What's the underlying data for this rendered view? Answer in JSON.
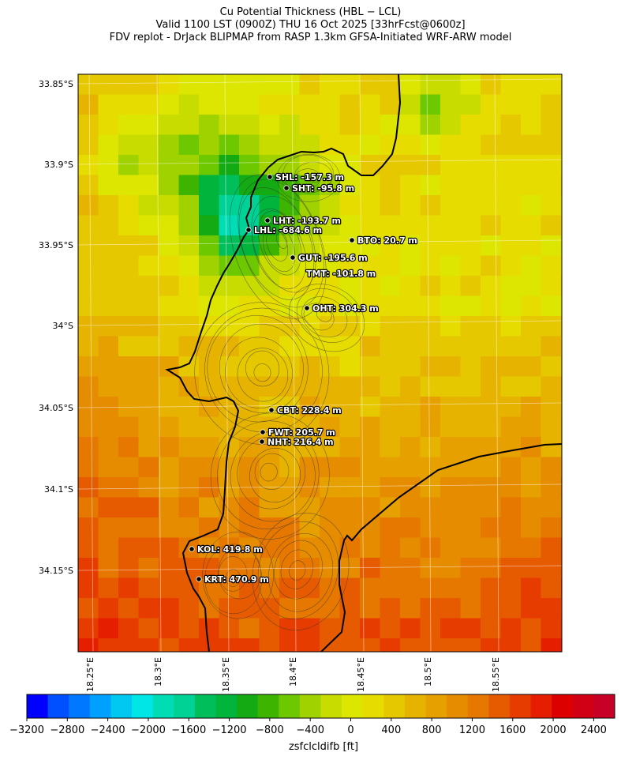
{
  "title": {
    "line1": "Cu Potential Thickness (HBL − LCL)",
    "line2": "Valid 1100 LST (0900Z) THU 16 Oct 2025 [33hrFcst@0600z]",
    "line3": "FDV replot - DrJack BLIPMAP from RASP 1.3km GFSA-Initiated WRF-ARW model"
  },
  "lat_labels": [
    "33.85°S",
    "33.9°S",
    "33.95°S",
    "34°S",
    "34.05°S",
    "34.1°S",
    "34.15°S"
  ],
  "lon_labels": [
    "18.25°E",
    "18.3°E",
    "18.35°E",
    "18.4°E",
    "18.45°E",
    "18.5°E",
    "18.55°E"
  ],
  "stations": [
    {
      "code": "SHL",
      "label": "SHL: -157.3 m",
      "value_m": -157.3
    },
    {
      "code": "SHT",
      "label": "SHT: -95.8 m",
      "value_m": -95.8
    },
    {
      "code": "LHT",
      "label": "LHT: -193.7 m",
      "value_m": -193.7
    },
    {
      "code": "LHL",
      "label": "LHL: -684.6 m",
      "value_m": -684.6
    },
    {
      "code": "BTO",
      "label": "BTO: 20.7 m",
      "value_m": 20.7
    },
    {
      "code": "GUT",
      "label": "GUT: -195.6 m",
      "value_m": -195.6
    },
    {
      "code": "TMT",
      "label": "TMT: -101.8 m",
      "value_m": -101.8
    },
    {
      "code": "OHT",
      "label": "OHT: 304.3 m",
      "value_m": 304.3
    },
    {
      "code": "CBT",
      "label": "CBT: 228.4 m",
      "value_m": 228.4
    },
    {
      "code": "FWT",
      "label": "FWT: 205.7 m",
      "value_m": 205.7
    },
    {
      "code": "NHT",
      "label": "NHT: 216.4 m",
      "value_m": 216.4
    },
    {
      "code": "KOL",
      "label": "KOL: 419.8 m",
      "value_m": 419.8
    },
    {
      "code": "KRT",
      "label": "KRT: 470.9 m",
      "value_m": 470.9
    }
  ],
  "colorbar": {
    "label": "zsfclcldifb [ft]",
    "ticks": [
      "−3200",
      "−2800",
      "−2400",
      "−2000",
      "−1600",
      "−1200",
      "−800",
      "−400",
      "0",
      "400",
      "800",
      "1200",
      "1600",
      "2000",
      "2400"
    ],
    "colors": [
      "#0000ff",
      "#0050ff",
      "#0078ff",
      "#00a0ff",
      "#00c8f0",
      "#00e6e6",
      "#00dcb4",
      "#00d296",
      "#00be5a",
      "#00b43c",
      "#14aa14",
      "#3cb400",
      "#6ec800",
      "#a0d200",
      "#c8dc00",
      "#dce600",
      "#e6dc00",
      "#e6c800",
      "#e6b400",
      "#e6a000",
      "#e68c00",
      "#e67800",
      "#e65a00",
      "#e63c00",
      "#e61e00",
      "#dc0000",
      "#d20014",
      "#c80028"
    ]
  }
}
